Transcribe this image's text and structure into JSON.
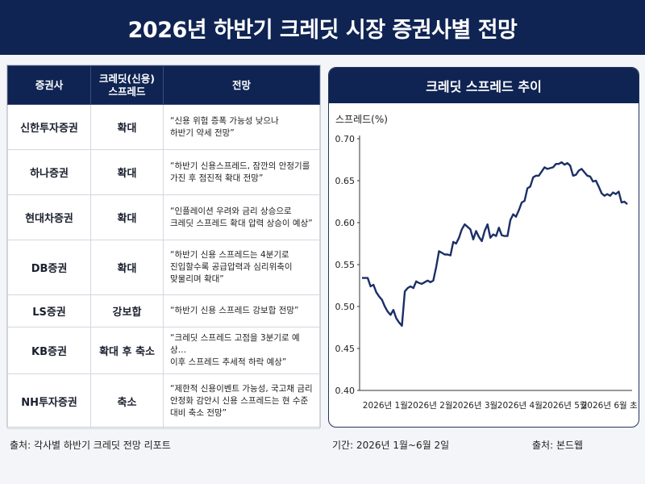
{
  "title": "2026년 하반기 크레딧 시장 증권사별 전망",
  "table": {
    "headers": {
      "firm": "증권사",
      "spread_line1": "크레딧(신용)",
      "spread_line2": "스프레드",
      "outlook": "전망"
    },
    "rows": [
      {
        "firm": "신한투자증권",
        "spread": "확대",
        "outlook": "“신용 위험 증폭 가능성 낮으나\n하반기 약세 전망”"
      },
      {
        "firm": "하나증권",
        "spread": "확대",
        "outlook": "“하반기 신용스프레드, 잠깐의 안정기를\n가진 후 점진적 확대 전망”"
      },
      {
        "firm": "현대차증권",
        "spread": "확대",
        "outlook": "“인플레이션 우려와 금리 상승으로\n크레딧 스프레드 확대 압력 상승이 예상”"
      },
      {
        "firm": "DB증권",
        "spread": "확대",
        "outlook": "“하반기 신용 스프레드는 4분기로\n진입할수록 공급압력과 심리위축이\n맞물리며 확대”"
      },
      {
        "firm": "LS증권",
        "spread": "강보합",
        "outlook": "“하반기 신용 스프레드 강보합 전망”"
      },
      {
        "firm": "KB증권",
        "spread": "확대 후 축소",
        "outlook": "“크레딧 스프레드 고점을 3분기로 예상…\n이후 스프레드 추세적 하락 예상”"
      },
      {
        "firm": "NH투자증권",
        "spread": "축소",
        "outlook": "“제한적 신용이벤트 가능성, 국고채 금리\n안정화 감안시 신용 스프레드는 현 수준\n대비 축소 전망”"
      }
    ]
  },
  "chart_data": {
    "type": "line",
    "title": "크레딧 스프레드 추이",
    "ylabel": "스프레드(%)",
    "xlabel": "",
    "ylim": [
      0.4,
      0.7
    ],
    "yticks": [
      "0.40",
      "0.45",
      "0.50",
      "0.55",
      "0.60",
      "0.65",
      "0.70"
    ],
    "xticks": [
      "2026년 1월",
      "2026년 2월",
      "2026년 3월",
      "2026년 4월",
      "2026년 5월",
      "2026년 6월 초"
    ],
    "grid": false,
    "color": "#1b2f66",
    "series": [
      {
        "values": [
          0.534,
          0.534,
          0.534,
          0.524,
          0.526,
          0.517,
          0.512,
          0.508,
          0.5,
          0.494,
          0.49,
          0.496,
          0.486,
          0.481,
          0.477,
          0.518,
          0.522,
          0.524,
          0.522,
          0.53,
          0.528,
          0.527,
          0.529,
          0.531,
          0.529,
          0.531,
          0.547,
          0.566,
          0.564,
          0.562,
          0.562,
          0.561,
          0.577,
          0.575,
          0.582,
          0.592,
          0.598,
          0.595,
          0.592,
          0.58,
          0.59,
          0.583,
          0.578,
          0.59,
          0.598,
          0.582,
          0.586,
          0.584,
          0.594,
          0.585,
          0.584,
          0.584,
          0.603,
          0.61,
          0.607,
          0.615,
          0.624,
          0.626,
          0.641,
          0.643,
          0.654,
          0.656,
          0.656,
          0.661,
          0.666,
          0.664,
          0.665,
          0.666,
          0.67,
          0.67,
          0.672,
          0.669,
          0.671,
          0.668,
          0.656,
          0.657,
          0.662,
          0.664,
          0.66,
          0.656,
          0.655,
          0.649,
          0.65,
          0.643,
          0.635,
          0.632,
          0.634,
          0.632,
          0.636,
          0.634,
          0.637,
          0.624,
          0.625,
          0.622
        ]
      }
    ]
  },
  "footer": {
    "source_left": "출처: 각사별 하반기 크레딧 전망 리포트",
    "period": "기간: 2026년 1월~6월 2일",
    "source_right": "출처: 본드웹"
  }
}
